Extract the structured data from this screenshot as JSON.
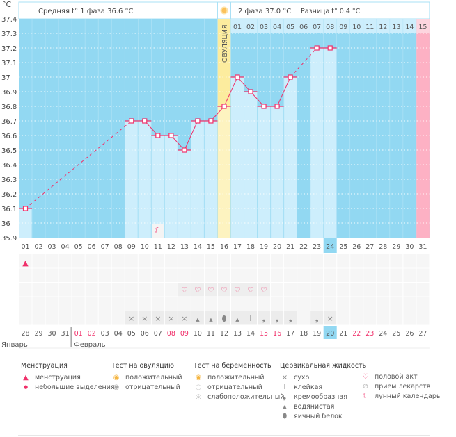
{
  "unit": "°C",
  "header": {
    "phase1": "Средняя t° 1 фаза 36.6 °C",
    "phase2": "2 фаза 37.0 °C",
    "diff": "Разница t° 0.4 °C",
    "ovulation": "ОВУЛЯЦИЯ"
  },
  "colors": {
    "bg": "#92d8f2",
    "bar": "#cdeefc",
    "line": "#f0306a",
    "ovulation": "#fcec9e",
    "period": "#fdb1c4"
  },
  "chart_data": {
    "type": "line",
    "ylabel": "°C",
    "ylim": [
      35.9,
      37.4
    ],
    "yticks": [
      "37.4",
      "37.3",
      "37.2",
      "37.1",
      "37",
      "36.9",
      "36.8",
      "36.7",
      "36.6",
      "36.5",
      "36.4",
      "36.3",
      "36.2",
      "36.1",
      "36",
      "35.9"
    ],
    "x": [
      "01",
      "02",
      "03",
      "04",
      "05",
      "06",
      "07",
      "08",
      "09",
      "10",
      "11",
      "12",
      "13",
      "14",
      "15",
      "16",
      "17",
      "18",
      "19",
      "20",
      "21",
      "22",
      "23",
      "24",
      "25",
      "26",
      "27",
      "28",
      "29",
      "30",
      "31"
    ],
    "values": [
      36.1,
      null,
      null,
      null,
      null,
      null,
      null,
      null,
      36.7,
      36.7,
      36.6,
      36.6,
      36.5,
      36.7,
      36.7,
      36.8,
      37.0,
      36.9,
      36.8,
      36.8,
      37.0,
      null,
      37.2,
      37.2,
      null,
      null,
      null,
      null,
      null,
      null,
      null
    ],
    "ovulation_day": 16,
    "current_day": 24,
    "next_period_day": 31,
    "phase2_days": [
      "01",
      "02",
      "03",
      "04",
      "05",
      "06",
      "07",
      "08",
      "09",
      "10",
      "11",
      "12",
      "13",
      "14",
      "15"
    ]
  },
  "rows": {
    "menstruation": {
      "1": "menstruation"
    },
    "intercourse": [
      "13",
      "14",
      "15",
      "16",
      "17",
      "18",
      "19"
    ],
    "cervical": {
      "9": "dry",
      "10": "dry",
      "11": "dry",
      "12": "dry",
      "13": "dry",
      "14": "watery",
      "15": "watery",
      "16": "egg",
      "17": "watery",
      "18": "sticky",
      "19": "creamy",
      "20": "creamy",
      "21": "creamy",
      "23": "creamy",
      "24": "dry"
    },
    "moon_day": 11
  },
  "dates": [
    "28",
    "29",
    "30",
    "31",
    "01",
    "02",
    "03",
    "04",
    "05",
    "06",
    "07",
    "08",
    "09",
    "10",
    "11",
    "12",
    "13",
    "14",
    "15",
    "16",
    "17",
    "18",
    "19",
    "20",
    "21",
    "22",
    "23",
    "24",
    "25",
    "26",
    "27"
  ],
  "weekend_idx": [
    4,
    5,
    11,
    12,
    18,
    19,
    25,
    26
  ],
  "months": [
    "Январь",
    "Февраль"
  ],
  "legend": {
    "menstruation": {
      "title": "Менструация",
      "items": [
        "менструация",
        "небольшие выделения"
      ]
    },
    "ovtest": {
      "title": "Тест на овуляцию",
      "items": [
        "положительный",
        "отрицательный"
      ]
    },
    "pregtest": {
      "title": "Тест на беременность",
      "items": [
        "положительный",
        "отрицательный",
        "слабоположительный"
      ]
    },
    "cervical": {
      "title": "Цервикальная жидкость",
      "items": [
        "сухо",
        "клейкая",
        "кремообразная",
        "водянистая",
        "яичный белок"
      ]
    },
    "other": {
      "items": [
        "половой акт",
        "прием лекарств",
        "лунный календарь"
      ]
    }
  }
}
